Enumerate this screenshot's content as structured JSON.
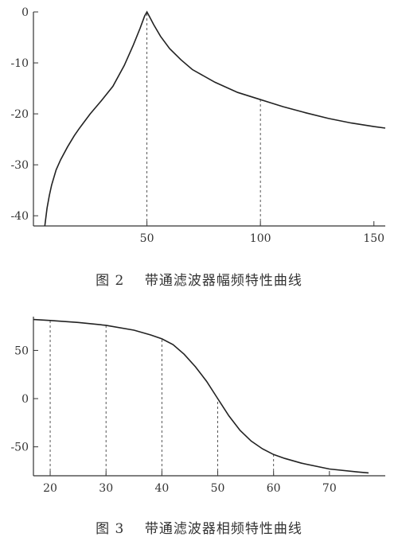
{
  "chart_data": [
    {
      "type": "line",
      "title": "",
      "xlabel": "",
      "ylabel": "",
      "xlim": [
        0,
        155
      ],
      "ylim": [
        -42,
        0
      ],
      "xticks": [
        50,
        100,
        150
      ],
      "xtick_labels": [
        "50",
        "100",
        "150"
      ],
      "yticks": [
        0,
        -10,
        -20,
        -30,
        -40
      ],
      "ytick_labels": [
        "0",
        "-10",
        "-20",
        "-30",
        "-40"
      ],
      "grid": false,
      "guide_lines_x": [
        50,
        100
      ],
      "series": [
        {
          "x": [
            5,
            6,
            7,
            8,
            10,
            12,
            15,
            18,
            20,
            22,
            25,
            30,
            35,
            40,
            44,
            47,
            49,
            50,
            51,
            53,
            56,
            60,
            65,
            70,
            80,
            90,
            100,
            110,
            120,
            130,
            140,
            150,
            155
          ],
          "values": [
            -42,
            -38.5,
            -36,
            -34,
            -31,
            -29,
            -26.5,
            -24.3,
            -23,
            -21.8,
            -20,
            -17.4,
            -14.6,
            -10.5,
            -6.5,
            -3.2,
            -0.8,
            0,
            -0.8,
            -2.5,
            -4.8,
            -7.2,
            -9.4,
            -11.3,
            -13.8,
            -15.8,
            -17.2,
            -18.6,
            -19.8,
            -20.9,
            -21.8,
            -22.5,
            -22.8
          ]
        }
      ]
    },
    {
      "type": "line",
      "title": "",
      "xlabel": "",
      "ylabel": "",
      "xlim": [
        17,
        80
      ],
      "ylim": [
        -80,
        85
      ],
      "xticks": [
        20,
        30,
        40,
        50,
        60,
        70
      ],
      "xtick_labels": [
        "20",
        "30",
        "40",
        "50",
        "60",
        "70"
      ],
      "yticks": [
        50,
        0,
        -50
      ],
      "ytick_labels": [
        "50",
        "0",
        "-50"
      ],
      "grid": false,
      "guide_lines_x": [
        20,
        30,
        40,
        50,
        60
      ],
      "series": [
        {
          "x": [
            17,
            20,
            25,
            30,
            35,
            38,
            40,
            42,
            44,
            46,
            48,
            50,
            52,
            54,
            56,
            58,
            60,
            62,
            65,
            70,
            75,
            77
          ],
          "values": [
            82,
            81,
            79,
            76,
            71,
            66,
            62,
            56,
            46,
            33,
            18,
            0,
            -18,
            -33,
            -44,
            -52,
            -58,
            -62,
            -67,
            -73,
            -76,
            -77
          ]
        }
      ]
    }
  ],
  "captions": {
    "fig2": "图 2    带通滤波器幅频特性曲线",
    "fig3": "图 3    带通滤波器相频特性曲线"
  }
}
